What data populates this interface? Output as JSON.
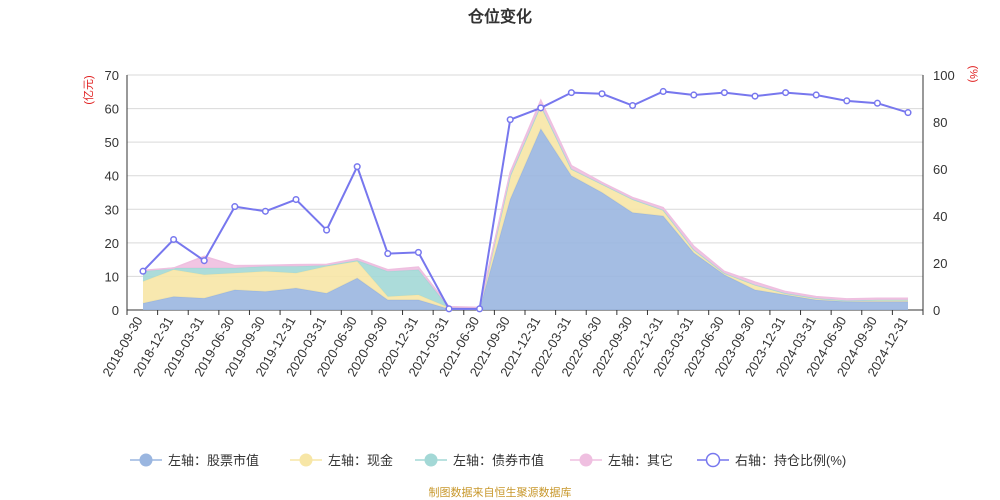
{
  "chart_data": {
    "type": "area",
    "title": "仓位变化",
    "y_left_unit": "(亿元)",
    "y_right_unit": "(%)",
    "y_left_ticks": [
      "0",
      "10",
      "20",
      "30",
      "40",
      "50",
      "60",
      "70"
    ],
    "y_right_ticks": [
      "0",
      "20",
      "40",
      "60",
      "80",
      "100"
    ],
    "ylim_left": [
      0,
      70
    ],
    "ylim_right": [
      0,
      100
    ],
    "categories": [
      "2018-09-30",
      "2018-12-31",
      "2019-03-31",
      "2019-06-30",
      "2019-09-30",
      "2019-12-31",
      "2020-03-31",
      "2020-06-30",
      "2020-09-30",
      "2020-12-31",
      "2021-03-31",
      "2021-06-30",
      "2021-09-30",
      "2021-12-31",
      "2022-03-31",
      "2022-06-30",
      "2022-09-30",
      "2022-12-31",
      "2023-03-31",
      "2023-06-30",
      "2023-09-30",
      "2023-12-31",
      "2024-03-31",
      "2024-06-30",
      "2024-09-30",
      "2024-12-31"
    ],
    "stacked_series": [
      {
        "name": "左轴：股票市值",
        "axis": "left",
        "color": "#9ab6e0",
        "values": [
          2.0,
          4.0,
          3.5,
          6.0,
          5.5,
          6.5,
          5.0,
          9.5,
          3.0,
          3.0,
          0.3,
          0.3,
          33.0,
          54.0,
          40.0,
          35.0,
          29.0,
          28.0,
          17.0,
          10.5,
          6.0,
          4.5,
          3.0,
          2.5,
          2.5,
          2.5
        ]
      },
      {
        "name": "左轴：现金",
        "axis": "left",
        "color": "#f7e6a6",
        "values": [
          6.5,
          8.0,
          7.0,
          5.0,
          6.0,
          4.5,
          8.0,
          5.0,
          1.0,
          1.5,
          0.4,
          0.2,
          7.0,
          7.0,
          2.0,
          2.5,
          4.0,
          1.8,
          1.0,
          0.5,
          1.5,
          0.5,
          0.5,
          0.3,
          0.5,
          0.5
        ]
      },
      {
        "name": "左轴：债券市值",
        "axis": "left",
        "color": "#a3d8d6",
        "values": [
          3.0,
          0.5,
          2.0,
          1.5,
          1.5,
          2.0,
          0.3,
          0.3,
          7.5,
          7.5,
          0.0,
          0.0,
          0.0,
          0.0,
          0.0,
          0.0,
          0.0,
          0.0,
          0.0,
          0.0,
          0.0,
          0.0,
          0.0,
          0.0,
          0.0,
          0.0
        ]
      },
      {
        "name": "左轴：其它",
        "axis": "left",
        "color": "#efbfe0",
        "values": [
          0.3,
          0.0,
          3.5,
          0.7,
          0.3,
          0.5,
          0.3,
          0.5,
          0.5,
          0.8,
          0.3,
          0.3,
          1.0,
          1.5,
          1.0,
          0.5,
          0.5,
          0.7,
          1.0,
          0.5,
          0.8,
          0.5,
          0.5,
          0.5,
          0.5,
          0.5
        ]
      }
    ],
    "line_series": {
      "name": "右轴：持仓比例(%)",
      "axis": "right",
      "color": "#7777ee",
      "values": [
        16.5,
        30,
        21,
        44,
        42,
        47,
        34,
        61,
        24,
        24.5,
        0.5,
        0.5,
        81,
        86,
        92.5,
        92,
        87,
        93,
        91.5,
        92.5,
        91,
        92.5,
        91.5,
        89,
        88,
        84
      ]
    },
    "legend": [
      {
        "label": "左轴：股票市值",
        "color": "#9ab6e0",
        "kind": "area"
      },
      {
        "label": "左轴：现金",
        "color": "#f7e6a6",
        "kind": "area"
      },
      {
        "label": "左轴：债券市值",
        "color": "#a3d8d6",
        "kind": "area"
      },
      {
        "label": "左轴：其它",
        "color": "#efbfe0",
        "kind": "area"
      },
      {
        "label": "右轴：持仓比例(%)",
        "color": "#7777ee",
        "kind": "line"
      }
    ],
    "legend_position": "bottom",
    "grid": true
  },
  "source": "制图数据来自恒生聚源数据库"
}
